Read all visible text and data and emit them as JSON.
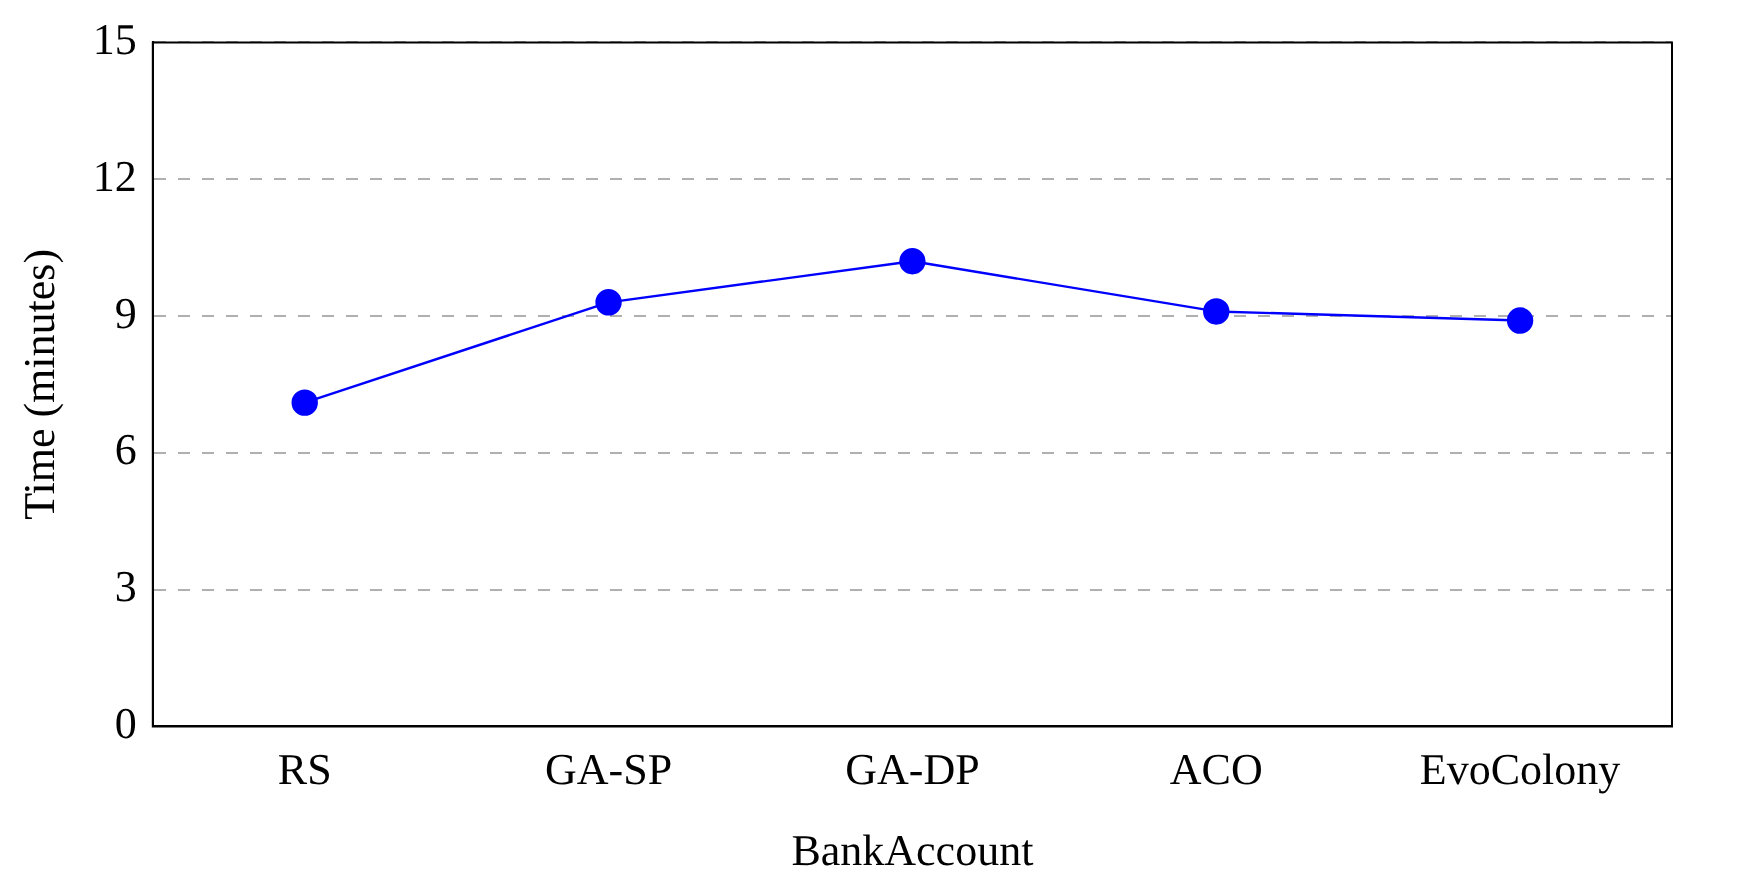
{
  "chart_data": {
    "type": "line",
    "xlabel": "BankAccount",
    "ylabel": "Time (minutes)",
    "categories": [
      "RS",
      "GA-SP",
      "GA-DP",
      "ACO",
      "EvoColony"
    ],
    "values": [
      7.1,
      9.3,
      10.2,
      9.1,
      8.9
    ],
    "color": "#0000ff",
    "ylim": [
      0,
      15
    ],
    "yticks": [
      0,
      3,
      6,
      9,
      12,
      15
    ],
    "grid": "y",
    "marker": "circle",
    "legend": false
  }
}
